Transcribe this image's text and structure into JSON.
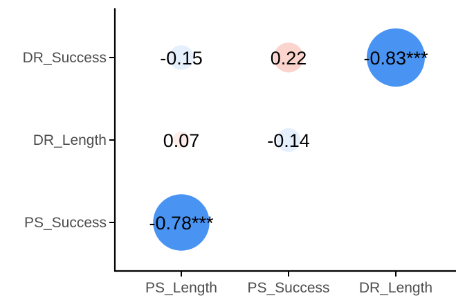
{
  "chart_data": {
    "type": "bubble-correlation",
    "title": "",
    "xlabel": "",
    "ylabel": "",
    "x_categories": [
      "PS_Length",
      "PS_Success",
      "DR_Length"
    ],
    "y_categories": [
      "PS_Success",
      "DR_Length",
      "DR_Success"
    ],
    "cells": [
      {
        "x": "PS_Length",
        "y": "DR_Success",
        "value": -0.15,
        "label": "-0.15"
      },
      {
        "x": "PS_Success",
        "y": "DR_Success",
        "value": 0.22,
        "label": "0.22"
      },
      {
        "x": "DR_Length",
        "y": "DR_Success",
        "value": -0.83,
        "label": "-0.83***"
      },
      {
        "x": "PS_Length",
        "y": "DR_Length",
        "value": 0.07,
        "label": "0.07"
      },
      {
        "x": "PS_Success",
        "y": "DR_Length",
        "value": -0.14,
        "label": "-0.14"
      },
      {
        "x": "PS_Length",
        "y": "PS_Success",
        "value": -0.78,
        "label": "-0.78***"
      }
    ],
    "colors": {
      "negative": "#3f8ef2",
      "positive": "#f06a4e",
      "axis": "#000000",
      "tick_text": "#4d4d4d",
      "cell_text": "#000000"
    },
    "grid": false,
    "legend": "none"
  }
}
